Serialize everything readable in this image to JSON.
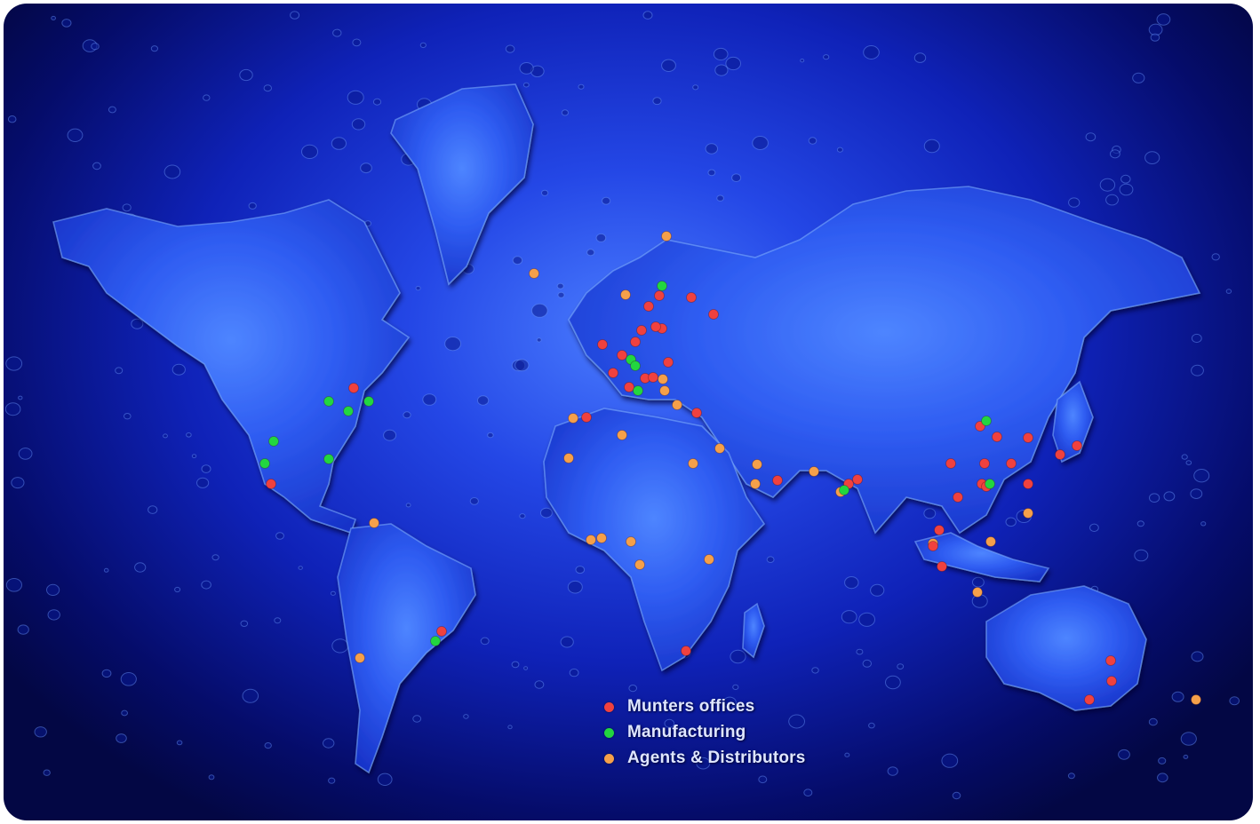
{
  "colors": {
    "office": "#f0413f",
    "manufacturing": "#22d640",
    "agent": "#f5a04a",
    "land": "#2f5df2"
  },
  "legend": {
    "office": "Munters offices",
    "manufacturing": "Manufacturing",
    "agents": "Agents & Distributors"
  },
  "map": {
    "location_counts": {
      "office": 62,
      "manufacturing": 14,
      "agent": 43
    }
  }
}
